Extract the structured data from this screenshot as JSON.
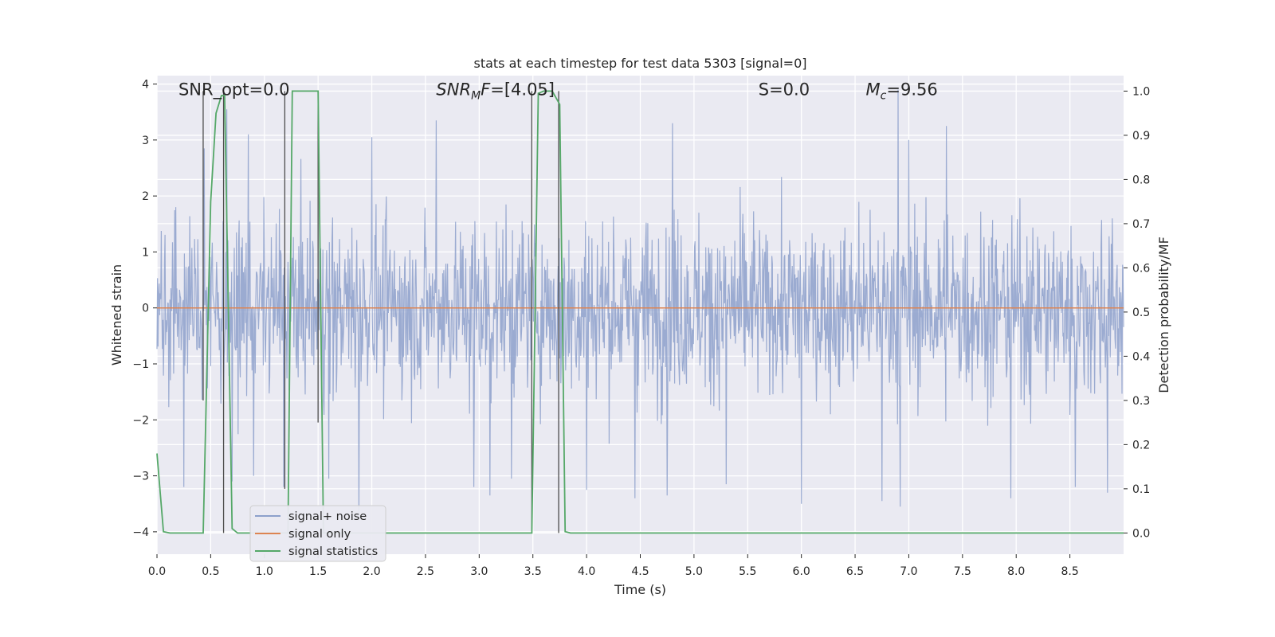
{
  "chart_data": {
    "type": "line",
    "title": "stats at each timestep for test data 5303 [signal=0]",
    "xlabel": "Time (s)",
    "ylabel": "Whitened strain",
    "y2label": "Detection probability/MF",
    "xlim": [
      0.0,
      9.0
    ],
    "ylim": [
      -4.4,
      4.15
    ],
    "y2lim": [
      -0.048,
      1.035
    ],
    "xticks": [
      0.0,
      0.5,
      1.0,
      1.5,
      2.0,
      2.5,
      3.0,
      3.5,
      4.0,
      4.5,
      5.0,
      5.5,
      6.0,
      6.5,
      7.0,
      7.5,
      8.0,
      8.5
    ],
    "xtick_labels": [
      "0.0",
      "0.5",
      "1.0",
      "1.5",
      "2.0",
      "2.5",
      "3.0",
      "3.5",
      "4.0",
      "4.5",
      "5.0",
      "5.5",
      "6.0",
      "6.5",
      "7.0",
      "7.5",
      "8.0",
      "8.5"
    ],
    "yticks": [
      -4,
      -3,
      -2,
      -1,
      0,
      1,
      2,
      3,
      4
    ],
    "ytick_labels": [
      "−4",
      "−3",
      "−2",
      "−1",
      "0",
      "1",
      "2",
      "3",
      "4"
    ],
    "y2ticks": [
      0.0,
      0.1,
      0.2,
      0.3,
      0.4,
      0.5,
      0.6,
      0.7,
      0.8,
      0.9,
      1.0
    ],
    "y2tick_labels": [
      "0.0",
      "0.1",
      "0.2",
      "0.3",
      "0.4",
      "0.5",
      "0.6",
      "0.7",
      "0.8",
      "0.9",
      "1.0"
    ],
    "grid": true,
    "legend_position": "lower-left",
    "annotations": [
      {
        "label": "SNR_opt=0.0",
        "x": 0.2
      },
      {
        "label": "SNR_MF=[4.05]",
        "x": 2.6
      },
      {
        "label": "S=0.0",
        "x": 5.6
      },
      {
        "label": "M_c=9.56",
        "x": 6.6
      }
    ],
    "series": [
      {
        "name": "signal+ noise",
        "color": "#8da0cb",
        "envelope": "noise, approx. ±2 typical, spikes to about +3.9 / −4.0",
        "spikes": [
          [
            0.25,
            -3.2
          ],
          [
            0.44,
            2.85
          ],
          [
            0.65,
            3.55
          ],
          [
            0.7,
            -3.1
          ],
          [
            0.85,
            3.1
          ],
          [
            0.9,
            -3.0
          ],
          [
            1.18,
            -3.2
          ],
          [
            1.6,
            -3.05
          ],
          [
            1.88,
            -3.8
          ],
          [
            2.0,
            3.05
          ],
          [
            2.6,
            3.35
          ],
          [
            2.95,
            -3.2
          ],
          [
            3.1,
            -3.35
          ],
          [
            3.3,
            -3.05
          ],
          [
            4.0,
            -3.25
          ],
          [
            4.45,
            -3.4
          ],
          [
            4.75,
            -3.35
          ],
          [
            4.8,
            3.3
          ],
          [
            5.3,
            -3.15
          ],
          [
            6.0,
            -3.5
          ],
          [
            6.75,
            -3.45
          ],
          [
            6.9,
            3.9
          ],
          [
            6.92,
            -3.55
          ],
          [
            7.0,
            3.0
          ],
          [
            7.35,
            3.25
          ],
          [
            7.95,
            -3.4
          ],
          [
            8.55,
            -3.2
          ],
          [
            8.85,
            -3.3
          ]
        ]
      },
      {
        "name": "signal only",
        "color": "#dd8452",
        "x": [
          0.0,
          9.0
        ],
        "y": [
          0.0,
          0.0
        ]
      },
      {
        "name": "signal statistics",
        "color": "#55a868",
        "axis": "right",
        "x": [
          0.0,
          0.06,
          0.12,
          0.43,
          0.5,
          0.55,
          0.6,
          0.63,
          0.7,
          0.75,
          1.22,
          1.26,
          1.5,
          1.55,
          3.49,
          3.55,
          3.6,
          3.68,
          3.75,
          3.8,
          3.85,
          9.0
        ],
        "y": [
          0.18,
          0.003,
          0.0,
          0.0,
          0.75,
          0.95,
          0.99,
          0.99,
          0.01,
          0.0,
          0.0,
          1.0,
          1.0,
          0.0,
          0.0,
          0.995,
          1.0,
          1.0,
          0.97,
          0.003,
          0.0,
          0.0
        ]
      }
    ],
    "vertical_markers": [
      {
        "x": 0.43,
        "ymin": 0.3,
        "ymax": 1.0
      },
      {
        "x": 0.62,
        "ymin": 0.0,
        "ymax": 1.0
      },
      {
        "x": 1.19,
        "ymin": 0.1,
        "ymax": 1.0
      },
      {
        "x": 1.5,
        "ymin": 0.25,
        "ymax": 1.0
      },
      {
        "x": 3.49,
        "ymin": 0.0,
        "ymax": 1.0
      },
      {
        "x": 3.74,
        "ymin": 0.0,
        "ymax": 1.0
      }
    ]
  }
}
